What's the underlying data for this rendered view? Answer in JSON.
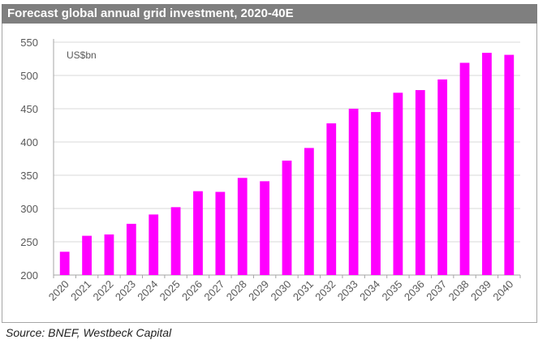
{
  "title": "Forecast global annual grid investment, 2020-40E",
  "source": "Source: BNEF, Westbeck Capital",
  "colors": {
    "bar": "#ff00ff",
    "title_bg": "#7f7f7f",
    "grid": "#d9d9d9",
    "axis": "#a6a6a6",
    "text": "#595959"
  },
  "chart_data": {
    "type": "bar",
    "title": "Forecast global annual grid investment, 2020-40E",
    "unit_label": "US$bn",
    "xlabel": "",
    "ylabel": "",
    "ylim": [
      200,
      550
    ],
    "yticks": [
      200,
      250,
      300,
      350,
      400,
      450,
      500,
      550
    ],
    "grid": true,
    "categories": [
      "2020",
      "2021",
      "2022",
      "2023",
      "2024",
      "2025",
      "2026",
      "2027",
      "2028",
      "2029",
      "2030",
      "2031",
      "2032",
      "2033",
      "2034",
      "2035",
      "2036",
      "2037",
      "2038",
      "2039",
      "2040"
    ],
    "values": [
      235,
      259,
      261,
      277,
      291,
      302,
      326,
      325,
      346,
      341,
      372,
      391,
      428,
      450,
      445,
      474,
      478,
      494,
      519,
      534,
      531
    ]
  }
}
